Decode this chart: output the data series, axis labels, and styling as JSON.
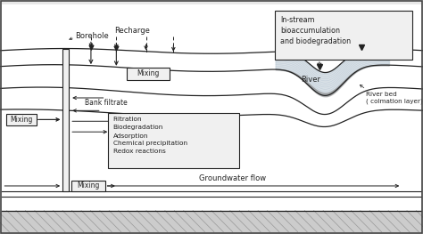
{
  "bg_color": "#e8e8e8",
  "line_color": "#222222",
  "white_fill": "#f0f0f0",
  "river_fill": "#c8d4dc",
  "labels": {
    "borehole": "Borehole",
    "recharge": "Recharge",
    "mixing_top": "Mixing",
    "bank_filtrate": "Bank filtrate",
    "mixing_mid": "Mixing",
    "mixing_bot": "Mixing",
    "groundwater": "Groundwater flow",
    "river": "River",
    "river_bed": "River bed\n( colmation layer)",
    "instream": "In-stream\nbioaccumulation\nand biodegradation",
    "filtration_box": "Filtration\nBiodegradation\nAdsorption\nChemical precipitation\nRedox reactions"
  },
  "figsize": [
    4.74,
    2.63
  ],
  "dpi": 100
}
